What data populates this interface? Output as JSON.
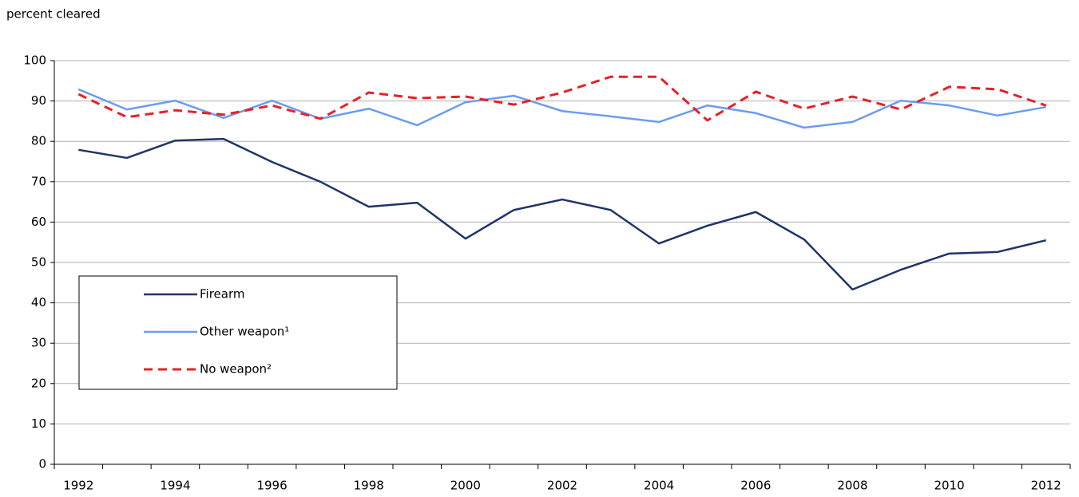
{
  "chart_data": {
    "type": "line",
    "y_label": "percent cleared",
    "categories": [
      "1992",
      null,
      "1994",
      null,
      "1996",
      null,
      "1998",
      null,
      "2000",
      null,
      "2002",
      null,
      "2004",
      null,
      "2006",
      null,
      "2008",
      null,
      "2010",
      null,
      "2012"
    ],
    "series": [
      {
        "name": "Firearm",
        "color": "#1f3468",
        "dash": false,
        "values": [
          77.9,
          75.9,
          80.2,
          80.6,
          74.9,
          70,
          63.8,
          64.8,
          55.9,
          63,
          65.6,
          63,
          54.7,
          59.1,
          62.5,
          55.7,
          43.3,
          48.2,
          52.2,
          52.6,
          55.5
        ]
      },
      {
        "name": "Other weapon¹",
        "color": "#6b9cf2",
        "dash": false,
        "values": [
          92.9,
          87.9,
          90.1,
          85.8,
          90.1,
          85.6,
          88.1,
          84,
          89.7,
          91.3,
          87.5,
          86.2,
          84.8,
          88.9,
          87,
          83.4,
          84.8,
          90.1,
          88.9,
          86.4,
          88.5
        ]
      },
      {
        "name": "No weapon²",
        "color": "#e8202a",
        "dash": true,
        "values": [
          91.7,
          86,
          87.7,
          86.6,
          88.9,
          85.6,
          92.1,
          90.7,
          91.1,
          89.1,
          92.1,
          96,
          96,
          85.2,
          92.3,
          88.1,
          91.1,
          87.9,
          93.5,
          92.9,
          88.9
        ]
      }
    ],
    "ylim": [
      0,
      100
    ],
    "yticks": [
      0,
      10,
      20,
      30,
      40,
      50,
      60,
      70,
      80,
      90,
      100
    ],
    "grid": true,
    "legend": "lower left"
  }
}
